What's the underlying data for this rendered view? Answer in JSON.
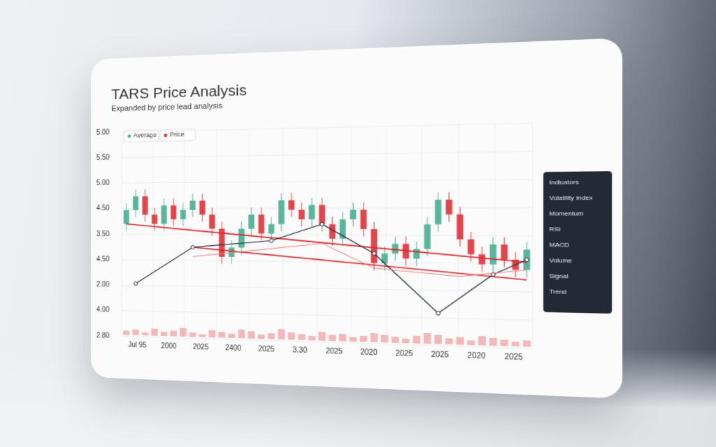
{
  "chart_data": {
    "type": "candlestick",
    "title": "TARS Price Analysis",
    "subtitle": "Expanded by price lead analysis",
    "legend": [
      "Average",
      "Price"
    ],
    "y_labels": [
      "5.00",
      "5.50",
      "5.00",
      "4.50",
      "3.50",
      "4.50",
      "2.00",
      "4.00",
      "2.80"
    ],
    "x_labels": [
      "Jul 95",
      "2000",
      "2025",
      "2400",
      "2025",
      "3.30",
      "2025",
      "2020",
      "2025",
      "2025",
      "2020",
      "2025"
    ],
    "ylim": [
      2,
      6
    ],
    "up_color": "#5bb59c",
    "down_color": "#e0474c",
    "open": [
      4.3,
      4.6,
      4.9,
      4.5,
      4.3,
      4.7,
      4.4,
      4.6,
      4.8,
      4.5,
      4.2,
      3.6,
      3.8,
      4.2,
      4.5,
      4.1,
      4.3,
      4.8,
      4.6,
      4.4,
      4.7,
      4.3,
      4.0,
      4.4,
      4.6,
      4.2,
      3.5,
      3.7,
      3.9,
      3.6,
      3.8,
      4.3,
      4.8,
      4.5,
      4.0,
      3.7,
      3.5,
      3.9,
      3.6,
      3.4
    ],
    "high": [
      4.75,
      5.05,
      5.05,
      4.65,
      4.85,
      4.85,
      4.75,
      4.95,
      4.95,
      4.65,
      4.35,
      3.95,
      4.35,
      4.65,
      4.65,
      4.45,
      4.95,
      4.95,
      4.75,
      4.85,
      4.85,
      4.45,
      4.55,
      4.75,
      4.75,
      4.35,
      3.85,
      4.05,
      4.05,
      3.95,
      4.45,
      4.95,
      4.95,
      4.65,
      4.15,
      3.85,
      4.05,
      4.05,
      3.75,
      3.95
    ],
    "low": [
      4.15,
      4.45,
      4.35,
      4.15,
      4.15,
      4.25,
      4.25,
      4.45,
      4.35,
      4.05,
      3.45,
      3.45,
      3.65,
      4.05,
      3.95,
      3.95,
      4.15,
      4.45,
      4.25,
      4.25,
      4.15,
      3.85,
      3.85,
      4.25,
      4.05,
      3.35,
      3.35,
      3.55,
      3.45,
      3.45,
      3.65,
      4.15,
      4.35,
      3.85,
      3.55,
      3.35,
      3.35,
      3.45,
      3.25,
      3.25
    ],
    "close": [
      4.6,
      4.9,
      4.5,
      4.3,
      4.7,
      4.4,
      4.6,
      4.8,
      4.5,
      4.2,
      3.6,
      3.8,
      4.2,
      4.5,
      4.1,
      4.3,
      4.8,
      4.6,
      4.4,
      4.7,
      4.3,
      4.0,
      4.4,
      4.6,
      4.2,
      3.5,
      3.7,
      3.9,
      3.6,
      3.8,
      4.3,
      4.8,
      4.5,
      4.0,
      3.7,
      3.5,
      3.9,
      3.6,
      3.4,
      3.8
    ],
    "volume": [
      3,
      4,
      2,
      5,
      3,
      4,
      6,
      3,
      2,
      5,
      4,
      3,
      6,
      5,
      3,
      4,
      7,
      5,
      4,
      3,
      6,
      4,
      5,
      3,
      4,
      6,
      5,
      4,
      3,
      5,
      7,
      6,
      4,
      5,
      3,
      6,
      5,
      4,
      3,
      4
    ],
    "volume_lim": [
      0,
      30
    ],
    "lines": [
      {
        "color": "#d9262c",
        "width": 1.6,
        "x": [
          0,
          39
        ],
        "values": [
          4.3,
          3.55
        ]
      },
      {
        "color": "#d9262c",
        "width": 1.6,
        "x": [
          7,
          39
        ],
        "values": [
          3.8,
          3.2
        ]
      },
      {
        "color": "#1f2a36",
        "width": 1.2,
        "dots": true,
        "x": [
          1,
          7,
          15,
          20,
          25,
          31,
          36,
          39
        ],
        "values": [
          3.0,
          3.8,
          3.95,
          4.3,
          3.7,
          2.5,
          3.3,
          3.6
        ]
      },
      {
        "color": "#e88080",
        "width": 1,
        "x": [
          7,
          20,
          25,
          33,
          39
        ],
        "values": [
          3.6,
          3.9,
          3.4,
          3.25,
          3.4
        ]
      }
    ],
    "panel": [
      "Indicators",
      "Volatility index",
      "Momentum",
      "RSI",
      "MACD",
      "Volume",
      "Signal",
      "Trend"
    ]
  }
}
